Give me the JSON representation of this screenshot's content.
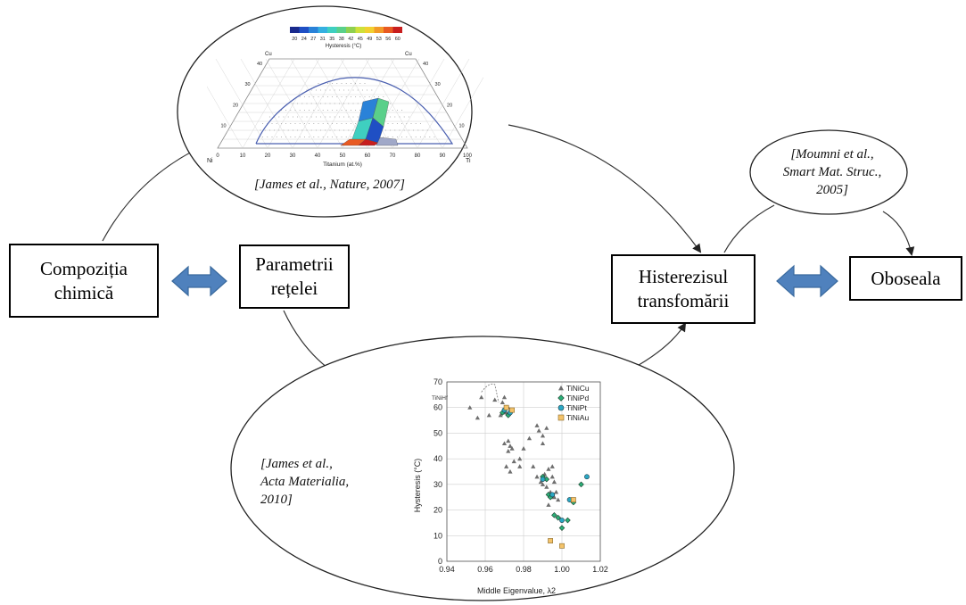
{
  "boxes": {
    "composition": {
      "line1": "Compoziția",
      "line2": "chimică"
    },
    "lattice": {
      "line1": "Parametrii",
      "line2": "rețelei"
    },
    "hysteresis": {
      "line1": "Histerezisul",
      "line2": "transfomării"
    },
    "fatigue": {
      "label": "Oboseala"
    }
  },
  "references": {
    "ternary": "[James et al., Nature, 2007]",
    "moumni": {
      "line1": "[Moumni et al.,",
      "line2": "Smart Mat. Struc.,",
      "line3": "2005]"
    },
    "acta": {
      "line1": "[James et al.,",
      "line2": "Acta Materialia,",
      "line3": "2010]"
    }
  },
  "colors": {
    "arrow_fill": "#4f81bd",
    "arrow_stroke": "#3a6a9e",
    "ternary_line": "#4a5fb0"
  },
  "ternary": {
    "colorbar_values": [
      "20",
      "24",
      "27",
      "31",
      "35",
      "38",
      "42",
      "45",
      "49",
      "53",
      "56",
      "60"
    ],
    "colorbar_colors": [
      "#1a2a8c",
      "#1f4fc4",
      "#2a82d8",
      "#35b0e0",
      "#3fcfc0",
      "#5ad08a",
      "#8fd050",
      "#cfe03a",
      "#f2d030",
      "#f29a28",
      "#e85a22",
      "#c81e1e"
    ],
    "colorbar_label": "Hysteresis (°C)",
    "top_left_label": "Cu",
    "top_right_label": "Cu",
    "left_label": "Ni",
    "right_label": "Ti",
    "bottom_ticks": [
      "0",
      "10",
      "20",
      "30",
      "40",
      "50",
      "60",
      "70",
      "80",
      "90",
      "100"
    ],
    "left_ticks": [
      "10",
      "20",
      "30",
      "40"
    ],
    "right_ticks": [
      "40",
      "30",
      "20",
      "10"
    ],
    "xlabel": "Titanium (at.%)"
  },
  "chart_data": {
    "type": "scatter",
    "title": "",
    "xlabel": "Middle Eigenvalue, λ2",
    "ylabel": "Hysteresis (°C)",
    "xlim": [
      0.94,
      1.02
    ],
    "ylim": [
      0,
      70
    ],
    "xticks": [
      "0.94",
      "0.96",
      "0.98",
      "1.00",
      "1.02"
    ],
    "yticks": [
      "0",
      "10",
      "20",
      "30",
      "40",
      "50",
      "60",
      "70"
    ],
    "grid": true,
    "legend_position": "top-right",
    "annotation": "TiNiHf",
    "series": [
      {
        "name": "TiNiCu",
        "marker": "triangle",
        "color": "#6e6e6e",
        "points": [
          [
            0.952,
            60
          ],
          [
            0.956,
            56
          ],
          [
            0.958,
            64
          ],
          [
            0.962,
            57
          ],
          [
            0.965,
            63
          ],
          [
            0.968,
            57
          ],
          [
            0.969,
            62
          ],
          [
            0.97,
            64
          ],
          [
            0.971,
            58
          ],
          [
            0.972,
            60
          ],
          [
            0.97,
            46
          ],
          [
            0.972,
            47
          ],
          [
            0.973,
            45
          ],
          [
            0.972,
            43
          ],
          [
            0.974,
            44
          ],
          [
            0.971,
            37
          ],
          [
            0.973,
            35
          ],
          [
            0.975,
            39
          ],
          [
            0.978,
            40
          ],
          [
            0.98,
            44
          ],
          [
            0.978,
            37
          ],
          [
            0.983,
            48
          ],
          [
            0.987,
            53
          ],
          [
            0.988,
            51
          ],
          [
            0.99,
            49
          ],
          [
            0.99,
            46
          ],
          [
            0.992,
            52
          ],
          [
            0.985,
            37
          ],
          [
            0.987,
            33
          ],
          [
            0.989,
            31
          ],
          [
            0.99,
            30
          ],
          [
            0.991,
            34
          ],
          [
            0.992,
            29
          ],
          [
            0.993,
            36
          ],
          [
            0.994,
            27
          ],
          [
            0.995,
            33
          ],
          [
            0.993,
            22
          ],
          [
            0.996,
            31
          ],
          [
            0.997,
            27
          ],
          [
            0.998,
            24
          ],
          [
            0.995,
            37
          ],
          [
            0.996,
            25
          ]
        ]
      },
      {
        "name": "TiNiPd",
        "marker": "diamond",
        "color": "#2bae77",
        "points": [
          [
            0.969,
            58
          ],
          [
            0.972,
            57
          ],
          [
            0.99,
            33
          ],
          [
            0.992,
            32
          ],
          [
            0.993,
            26
          ],
          [
            0.994,
            25
          ],
          [
            0.996,
            18
          ],
          [
            0.998,
            17
          ],
          [
            1.0,
            13
          ],
          [
            1.003,
            16
          ],
          [
            1.006,
            23
          ],
          [
            1.01,
            30
          ]
        ]
      },
      {
        "name": "TiNiPt",
        "marker": "circle",
        "color": "#2aa8c4",
        "points": [
          [
            0.97,
            59
          ],
          [
            0.973,
            58
          ],
          [
            0.99,
            32
          ],
          [
            0.995,
            26
          ],
          [
            1.0,
            16
          ],
          [
            1.004,
            24
          ],
          [
            1.013,
            33
          ]
        ]
      },
      {
        "name": "TiNiAu",
        "marker": "square",
        "color": "#f4c36a",
        "points": [
          [
            0.971,
            60
          ],
          [
            0.974,
            59
          ],
          [
            0.994,
            8
          ],
          [
            1.0,
            6
          ],
          [
            1.006,
            24
          ]
        ]
      }
    ]
  }
}
